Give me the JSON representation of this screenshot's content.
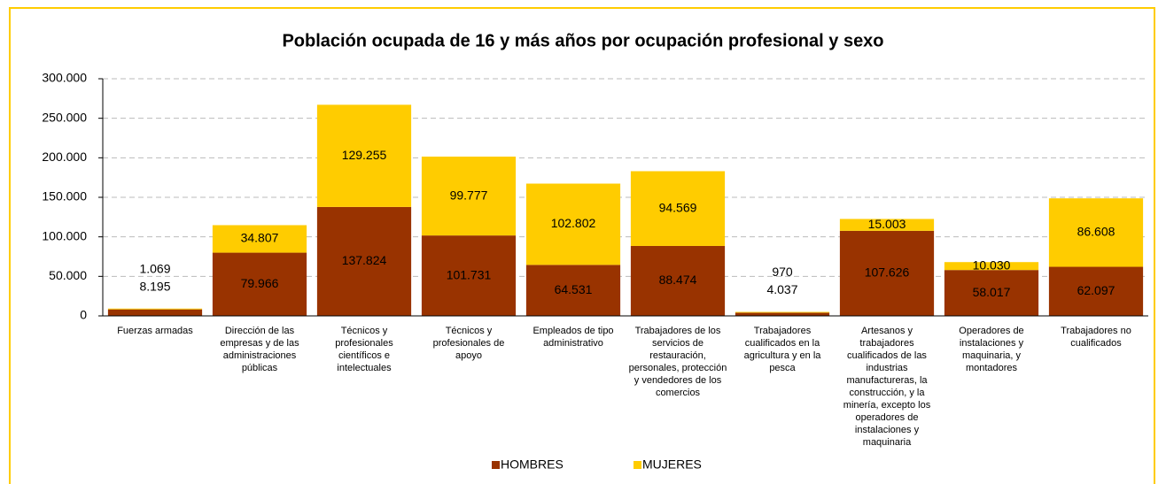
{
  "chart_data": {
    "type": "stacked_bar",
    "title": "Población ocupada de 16 y más años por ocupación profesional y sexo",
    "categories": [
      "Fuerzas armadas",
      "Dirección de las empresas y de las administraciones públicas",
      "Técnicos y profesionales científicos e intelectuales",
      "Técnicos y profesionales de apoyo",
      "Empleados de tipo administrativo",
      "Trabajadores de los servicios de restauración, personales, protección y vendedores de los comercios",
      "Trabajadores cualificados en la agricultura y en la pesca",
      "Artesanos y trabajadores cualificados de las industrias manufactureras, la construcción, y la minería, excepto los operadores de instalaciones y maquinaria",
      "Operadores de instalaciones y maquinaria, y montadores",
      "Trabajadores no cualificados"
    ],
    "series": [
      {
        "name": "HOMBRES",
        "color": "#993300",
        "values": [
          8195,
          79966,
          137824,
          101731,
          64531,
          88474,
          4037,
          107626,
          58017,
          62097
        ],
        "value_labels": [
          "8.195",
          "79.966",
          "137.824",
          "101.731",
          "64.531",
          "88.474",
          "4.037",
          "107.626",
          "58.017",
          "62.097"
        ]
      },
      {
        "name": "MUJERES",
        "color": "#ffcc00",
        "values": [
          1069,
          34807,
          129255,
          99777,
          102802,
          94569,
          970,
          15003,
          10030,
          86608
        ],
        "value_labels": [
          "1.069",
          "34.807",
          "129.255",
          "99.777",
          "102.802",
          "94.569",
          "970",
          "15.003",
          "10.030",
          "86.608"
        ]
      }
    ],
    "ylim": [
      0,
      300000
    ],
    "yticks": [
      0,
      {
        "value": 50000,
        "label": "50.000"
      },
      {
        "value": 100000,
        "label": "100.000"
      },
      {
        "value": 150000,
        "label": "150.000"
      },
      {
        "value": 200000,
        "label": "200.000"
      },
      {
        "value": 250000,
        "label": "250.000"
      },
      {
        "value": 300000,
        "label": "300.000"
      }
    ],
    "grid": true,
    "legend": "bottom"
  }
}
